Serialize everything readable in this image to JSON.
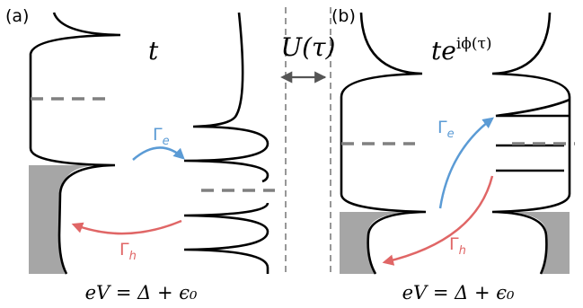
{
  "panels": {
    "a": {
      "label": "(a)",
      "hopping": "t",
      "condition": "eV = Δ + ϵ₀"
    },
    "b": {
      "label": "(b)",
      "hopping_base": "te",
      "hopping_phase": "iϕ(τ)",
      "condition": "eV = Δ + ϵ₀"
    }
  },
  "center": {
    "interaction": "U(τ)"
  },
  "rates": {
    "electron": "Γ",
    "electron_sub": "e",
    "hole": "Γ",
    "hole_sub": "h"
  },
  "colors": {
    "electron_arrow": "#5b9bd5",
    "hole_arrow": "#e06666",
    "filled_states": "#a6a6a6",
    "level_dash": "#808080",
    "outline": "#000000"
  }
}
